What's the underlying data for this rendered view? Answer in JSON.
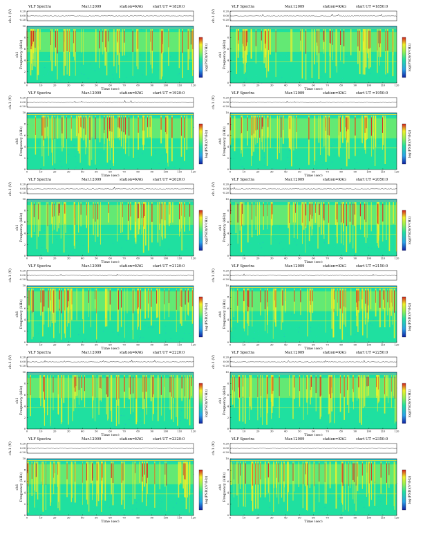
{
  "header": {
    "title": "VLF Spectra",
    "date": "Mar.12009",
    "station": "station=KAG",
    "start_prefix": "start  UT ="
  },
  "labels": {
    "ch1_axis": "ch.1 (V)",
    "freq_axis": "Frequency  (kHz)",
    "ch1_tag": "ch1",
    "time_axis": "Time  (sec)",
    "colorbar": "log(PSD)(V²/Hz)"
  },
  "colors": {
    "bg_low": "#1fe0a0",
    "noise": "#2aa0e8",
    "mid": "#9af050",
    "high": "#f0f028",
    "peak": "#d02020",
    "deep": "#1020a0"
  },
  "chart_data": [
    {
      "type": "heatmap",
      "start_time": "1820:0",
      "xlim": [
        0,
        120
      ],
      "ylim": [
        0,
        10
      ],
      "voltage_ylim": [
        -0.2,
        0.2
      ],
      "xticks": [
        0,
        10,
        20,
        30,
        40,
        50,
        60,
        70,
        80,
        90,
        100,
        110,
        120
      ],
      "yticks": [
        0,
        2,
        4,
        6,
        8,
        10
      ],
      "vticks": [
        "0.20",
        "0.00",
        "-0.20"
      ]
    },
    {
      "type": "heatmap",
      "start_time": "1850:0",
      "xlim": [
        0,
        120
      ],
      "ylim": [
        0,
        10
      ],
      "voltage_ylim": [
        -0.2,
        0.2
      ],
      "xticks": [
        0,
        10,
        20,
        30,
        40,
        50,
        60,
        70,
        80,
        90,
        100,
        110,
        120
      ],
      "yticks": [
        0,
        2,
        4,
        6,
        8,
        10
      ],
      "vticks": [
        "0.20",
        "0.00",
        "-0.20"
      ]
    },
    {
      "type": "heatmap",
      "start_time": "1920:0",
      "xlim": [
        0,
        120
      ],
      "ylim": [
        0,
        10
      ],
      "voltage_ylim": [
        -0.2,
        0.2
      ],
      "xticks": [
        0,
        10,
        20,
        30,
        40,
        50,
        60,
        70,
        80,
        90,
        100,
        110,
        120
      ],
      "yticks": [
        0,
        2,
        4,
        6,
        8,
        10
      ],
      "vticks": [
        "0.20",
        "0.00",
        "-0.20"
      ]
    },
    {
      "type": "heatmap",
      "start_time": "1950:0",
      "xlim": [
        0,
        120
      ],
      "ylim": [
        0,
        10
      ],
      "voltage_ylim": [
        -0.2,
        0.2
      ],
      "xticks": [
        0,
        10,
        20,
        30,
        40,
        50,
        60,
        70,
        80,
        90,
        100,
        110,
        120
      ],
      "yticks": [
        0,
        2,
        4,
        6,
        8,
        10
      ],
      "vticks": [
        "0.20",
        "0.00",
        "-0.20"
      ]
    },
    {
      "type": "heatmap",
      "start_time": "2020:0",
      "xlim": [
        0,
        120
      ],
      "ylim": [
        0,
        10
      ],
      "voltage_ylim": [
        -0.2,
        0.2
      ],
      "xticks": [
        0,
        10,
        20,
        30,
        40,
        50,
        60,
        70,
        80,
        90,
        100,
        110,
        120
      ],
      "yticks": [
        0,
        2,
        4,
        6,
        8,
        10
      ],
      "vticks": [
        "0.20",
        "0.00",
        "-0.20"
      ]
    },
    {
      "type": "heatmap",
      "start_time": "2050:0",
      "xlim": [
        0,
        120
      ],
      "ylim": [
        0,
        10
      ],
      "voltage_ylim": [
        -0.2,
        0.2
      ],
      "xticks": [
        0,
        10,
        20,
        30,
        40,
        50,
        60,
        70,
        80,
        90,
        100,
        110,
        120
      ],
      "yticks": [
        0,
        2,
        4,
        6,
        8,
        10
      ],
      "vticks": [
        "0.20",
        "0.00",
        "-0.20"
      ]
    },
    {
      "type": "heatmap",
      "start_time": "2120:0",
      "xlim": [
        0,
        120
      ],
      "ylim": [
        0,
        10
      ],
      "voltage_ylim": [
        -0.2,
        0.2
      ],
      "xticks": [
        0,
        10,
        20,
        30,
        40,
        50,
        60,
        70,
        80,
        90,
        100,
        110,
        120
      ],
      "yticks": [
        0,
        2,
        4,
        6,
        8,
        10
      ],
      "vticks": [
        "0.20",
        "0.00",
        "-0.20"
      ]
    },
    {
      "type": "heatmap",
      "start_time": "2150:0",
      "xlim": [
        0,
        120
      ],
      "ylim": [
        0,
        10
      ],
      "voltage_ylim": [
        -0.2,
        0.2
      ],
      "xticks": [
        0,
        10,
        20,
        30,
        40,
        50,
        60,
        70,
        80,
        90,
        100,
        110,
        120
      ],
      "yticks": [
        0,
        2,
        4,
        6,
        8,
        10
      ],
      "vticks": [
        "0.20",
        "0.00",
        "-0.20"
      ]
    },
    {
      "type": "heatmap",
      "start_time": "2220:0",
      "xlim": [
        0,
        120
      ],
      "ylim": [
        0,
        10
      ],
      "voltage_ylim": [
        -0.2,
        0.2
      ],
      "xticks": [
        0,
        10,
        20,
        30,
        40,
        50,
        60,
        70,
        80,
        90,
        100,
        110,
        120
      ],
      "yticks": [
        0,
        2,
        4,
        6,
        8,
        10
      ],
      "vticks": [
        "0.20",
        "0.00",
        "-0.20"
      ]
    },
    {
      "type": "heatmap",
      "start_time": "2250:0",
      "xlim": [
        0,
        120
      ],
      "ylim": [
        0,
        10
      ],
      "voltage_ylim": [
        -0.2,
        0.2
      ],
      "xticks": [
        0,
        10,
        20,
        30,
        40,
        50,
        60,
        70,
        80,
        90,
        100,
        110,
        120
      ],
      "yticks": [
        0,
        2,
        4,
        6,
        8,
        10
      ],
      "vticks": [
        "0.20",
        "0.00",
        "-0.20"
      ]
    },
    {
      "type": "heatmap",
      "start_time": "2320:0",
      "xlim": [
        0,
        120
      ],
      "ylim": [
        0,
        10
      ],
      "voltage_ylim": [
        -0.2,
        0.2
      ],
      "xticks": [
        0,
        10,
        20,
        30,
        40,
        50,
        60,
        70,
        80,
        90,
        100,
        110,
        120
      ],
      "yticks": [
        0,
        2,
        4,
        6,
        8,
        10
      ],
      "vticks": [
        "0.20",
        "0.00",
        "-0.20"
      ]
    },
    {
      "type": "heatmap",
      "start_time": "2350:0",
      "xlim": [
        0,
        120
      ],
      "ylim": [
        0,
        10
      ],
      "voltage_ylim": [
        -0.2,
        0.2
      ],
      "xticks": [
        0,
        10,
        20,
        30,
        40,
        50,
        60,
        70,
        80,
        90,
        100,
        110,
        120
      ],
      "yticks": [
        0,
        2,
        4,
        6,
        8,
        10
      ],
      "vticks": [
        "0.20",
        "0.00",
        "-0.20"
      ]
    }
  ]
}
